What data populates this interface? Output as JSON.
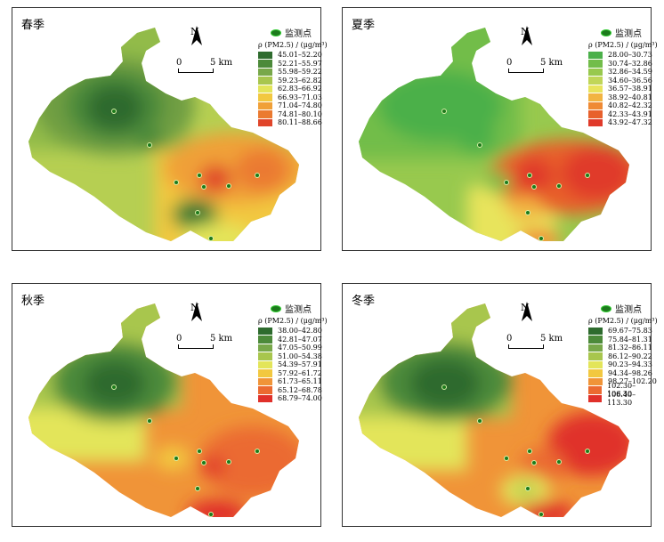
{
  "map_common": {
    "north_label": "N",
    "scale_zero": "0",
    "scale_label": "5 km",
    "legend_header": "监测点",
    "unit_label": "ρ (PM2.5) / (μg/m³)"
  },
  "panels": [
    {
      "season": "春季",
      "legend": [
        {
          "range": "45.01–52.20",
          "color": "#2e6b2e"
        },
        {
          "range": "52.21–55.97",
          "color": "#4c8a3a"
        },
        {
          "range": "55.98–59.22",
          "color": "#78a84a"
        },
        {
          "range": "59.23–62.82",
          "color": "#a8c64e"
        },
        {
          "range": "62.83–66.92",
          "color": "#e3e55a"
        },
        {
          "range": "66.93–71.03",
          "color": "#f2c840"
        },
        {
          "range": "71.04–74.80",
          "color": "#f0a038"
        },
        {
          "range": "74.81–80.10",
          "color": "#eb7a30"
        },
        {
          "range": "80.11–88.66",
          "color": "#e0452a"
        }
      ]
    },
    {
      "season": "夏季",
      "legend": [
        {
          "range": "28.00–30.73",
          "color": "#4bb04a"
        },
        {
          "range": "30.74–32.86",
          "color": "#72bd4a"
        },
        {
          "range": "32.86–34.59",
          "color": "#98c94e"
        },
        {
          "range": "34.60–36.56",
          "color": "#c0d658"
        },
        {
          "range": "36.57–38.91",
          "color": "#e8e45c"
        },
        {
          "range": "38.92–40.81",
          "color": "#f2b442"
        },
        {
          "range": "40.82–42.32",
          "color": "#ef8a34"
        },
        {
          "range": "42.33–43.91",
          "color": "#e8602c"
        },
        {
          "range": "43.92–47.32",
          "color": "#e03a2a"
        }
      ]
    },
    {
      "season": "秋季",
      "legend": [
        {
          "range": "38.00–42.80",
          "color": "#2e6b2e"
        },
        {
          "range": "42.81–47.07",
          "color": "#4c8a3a"
        },
        {
          "range": "47.05–50.99",
          "color": "#78a84a"
        },
        {
          "range": "51.00–54.38",
          "color": "#a8c64e"
        },
        {
          "range": "54.39–57.91",
          "color": "#e3e55a"
        },
        {
          "range": "57.92–61.72",
          "color": "#f2c840"
        },
        {
          "range": "61.73–65.11",
          "color": "#f09438"
        },
        {
          "range": "65.12–68.78",
          "color": "#eb6a30"
        },
        {
          "range": "68.79–74.00",
          "color": "#e0302a"
        }
      ]
    },
    {
      "season": "冬季",
      "legend": [
        {
          "range": "69.67–75.83",
          "color": "#2e6b2e"
        },
        {
          "range": "75.84–81.31",
          "color": "#4c8a3a"
        },
        {
          "range": "81.32–86.11",
          "color": "#78a84a"
        },
        {
          "range": "86.12–90.22",
          "color": "#a8c64e"
        },
        {
          "range": "90.23–94.33",
          "color": "#e3e55a"
        },
        {
          "range": "94.34–98.26",
          "color": "#f2c840"
        },
        {
          "range": "98.27–102.20",
          "color": "#f09438"
        },
        {
          "range": "102.30–106.30",
          "color": "#eb6a30"
        },
        {
          "range": "106.40–113.30",
          "color": "#e0302a"
        }
      ]
    }
  ]
}
